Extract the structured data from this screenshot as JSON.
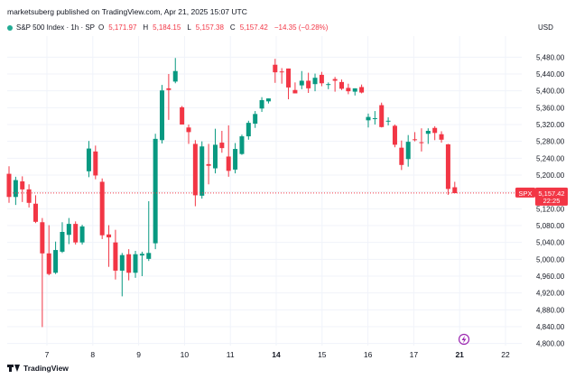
{
  "header": {
    "published": "marketsuberg published on TradingView.com, Apr 21, 2025 15:07 UTC"
  },
  "legend": {
    "symbol": "S&P 500 Index · 1h · SP",
    "open_label": "O",
    "open": "5,171.97",
    "high_label": "H",
    "high": "5,184.15",
    "low_label": "L",
    "low": "5,157.38",
    "close_label": "C",
    "close": "5,157.42",
    "change": "−14.35 (−0.28%)"
  },
  "currency": "USD",
  "footer": {
    "brand": "TradingView"
  },
  "colors": {
    "up": "#089981",
    "down": "#f23645",
    "grid": "#f0f3fa",
    "axis_text": "#131722",
    "price_line": "#f23645"
  },
  "price_tag": {
    "symbol": "SPX",
    "price": "5,157.42",
    "countdown": "22:25"
  },
  "chart_data": {
    "type": "candlestick",
    "y_ticks": [
      4800,
      4840,
      4880,
      4920,
      4960,
      5000,
      5040,
      5080,
      5120,
      5160,
      5200,
      5240,
      5280,
      5320,
      5360,
      5400,
      5440,
      5480
    ],
    "y_tick_labels": [
      "4,800.00",
      "4,840.00",
      "4,880.00",
      "4,920.00",
      "4,960.00",
      "5,000.00",
      "5,040.00",
      "5,080.00",
      "5,120.00",
      "5,160.00",
      "5,200.00",
      "5,240.00",
      "5,280.00",
      "5,320.00",
      "5,360.00",
      "5,400.00",
      "5,440.00",
      "5,480.00"
    ],
    "ylim": [
      4795,
      5530
    ],
    "x_labels": [
      "7",
      "8",
      "9",
      "10",
      "11",
      "14",
      "15",
      "16",
      "17",
      "21",
      "22"
    ],
    "x_label_bold": [
      "14",
      "21"
    ],
    "current_price": 5157.42,
    "candles": [
      [
        5203,
        5221,
        5134,
        5148
      ],
      [
        5148,
        5196,
        5129,
        5188
      ],
      [
        5185,
        5197,
        5136,
        5166
      ],
      [
        5166,
        5178,
        5123,
        5134
      ],
      [
        5132,
        5152,
        5086,
        5089
      ],
      [
        5088,
        5098,
        4839,
        5014
      ],
      [
        5014,
        5081,
        4962,
        4965
      ],
      [
        4968,
        5042,
        4965,
        5022
      ],
      [
        5018,
        5088,
        5015,
        5065
      ],
      [
        5058,
        5098,
        5036,
        5084
      ],
      [
        5084,
        5090,
        5035,
        5040
      ],
      [
        5040,
        5082,
        5035,
        5078
      ],
      [
        5209,
        5281,
        5195,
        5263
      ],
      [
        5256,
        5270,
        5190,
        5199
      ],
      [
        5184,
        5192,
        5048,
        5057
      ],
      [
        5059,
        5081,
        4982,
        5052
      ],
      [
        5040,
        5070,
        4952,
        4973
      ],
      [
        4973,
        5015,
        4912,
        5010
      ],
      [
        5012,
        5024,
        4950,
        4968
      ],
      [
        4968,
        5020,
        4956,
        5012
      ],
      [
        5009,
        5018,
        4960,
        5013
      ],
      [
        5001,
        5138,
        4996,
        5015
      ],
      [
        5038,
        5298,
        5024,
        5286
      ],
      [
        5283,
        5414,
        5275,
        5401
      ],
      [
        5406,
        5440,
        5331,
        5402
      ],
      [
        5422,
        5478,
        5418,
        5447
      ],
      [
        5361,
        5364,
        5322,
        5320
      ],
      [
        5313,
        5320,
        5274,
        5302
      ],
      [
        5274,
        5283,
        5126,
        5152
      ],
      [
        5151,
        5280,
        5144,
        5268
      ],
      [
        5226,
        5274,
        5178,
        5222
      ],
      [
        5216,
        5310,
        5204,
        5272
      ],
      [
        5277,
        5305,
        5253,
        5264
      ],
      [
        5244,
        5318,
        5196,
        5210
      ],
      [
        5213,
        5276,
        5204,
        5262
      ],
      [
        5250,
        5296,
        5248,
        5292
      ],
      [
        5292,
        5329,
        5284,
        5324
      ],
      [
        5322,
        5352,
        5312,
        5345
      ],
      [
        5358,
        5385,
        5350,
        5378
      ],
      [
        5375,
        5382,
        5370,
        5382
      ],
      [
        5462,
        5476,
        5419,
        5444
      ],
      [
        5446,
        5454,
        5417,
        5445
      ],
      [
        5453,
        5453,
        5380,
        5408
      ],
      [
        5402,
        5420,
        5394,
        5394
      ],
      [
        5413,
        5447,
        5404,
        5424
      ],
      [
        5424,
        5443,
        5395,
        5406
      ],
      [
        5416,
        5441,
        5399,
        5431
      ],
      [
        5438,
        5445,
        5411,
        5418
      ],
      [
        5414,
        5420,
        5404,
        5416
      ],
      [
        5428,
        5433,
        5398,
        5424
      ],
      [
        5421,
        5427,
        5402,
        5405
      ],
      [
        5407,
        5417,
        5392,
        5399
      ],
      [
        5398,
        5406,
        5389,
        5406
      ],
      [
        5409,
        5415,
        5394,
        5396
      ],
      [
        5330,
        5346,
        5313,
        5338
      ],
      [
        5335,
        5352,
        5320,
        5335
      ],
      [
        5366,
        5372,
        5313,
        5314
      ],
      [
        5327,
        5337,
        5318,
        5329
      ],
      [
        5317,
        5320,
        5266,
        5272
      ],
      [
        5265,
        5282,
        5212,
        5224
      ],
      [
        5238,
        5295,
        5220,
        5279
      ],
      [
        5285,
        5302,
        5280,
        5284
      ],
      [
        5278,
        5311,
        5256,
        5276
      ],
      [
        5298,
        5311,
        5274,
        5305
      ],
      [
        5312,
        5316,
        5283,
        5300
      ],
      [
        5297,
        5304,
        5277,
        5284
      ],
      [
        5273,
        5274,
        5153,
        5167
      ],
      [
        5171,
        5184,
        5157,
        5157
      ]
    ]
  }
}
